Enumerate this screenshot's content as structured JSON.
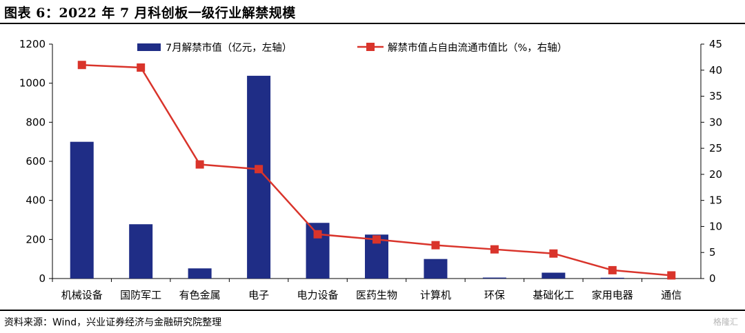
{
  "figure": {
    "title": "图表 6：2022 年 7 月科创板一级行业解禁规模",
    "source": "资料来源：Wind，兴业证券经济与金融研究院整理",
    "watermark": "格隆汇"
  },
  "chart_data": {
    "type": "bar",
    "categories": [
      "机械设备",
      "国防军工",
      "有色金属",
      "电子",
      "电力设备",
      "医药生物",
      "计算机",
      "环保",
      "基础化工",
      "家用电器",
      "通信"
    ],
    "series": [
      {
        "name": "7月解禁市值（亿元，左轴）",
        "type": "bar",
        "axis": "left",
        "color": "#1f2d86",
        "values": [
          700,
          278,
          52,
          1038,
          285,
          225,
          100,
          5,
          30,
          4,
          0
        ]
      },
      {
        "name": "解禁市值占自由流通市值比（%，右轴）",
        "type": "line",
        "axis": "right",
        "color": "#d9342b",
        "values": [
          41.0,
          40.5,
          21.9,
          21.0,
          8.5,
          7.5,
          6.4,
          5.6,
          4.8,
          1.6,
          0.6
        ]
      }
    ],
    "ylim_left": [
      0,
      1200
    ],
    "ylim_right": [
      0,
      45
    ],
    "yticks_left": [
      "0",
      "200",
      "400",
      "600",
      "800",
      "1000",
      "1200"
    ],
    "yticks_right": [
      "0",
      "5",
      "10",
      "15",
      "20",
      "25",
      "30",
      "35",
      "40",
      "45"
    ],
    "legend_position": "top",
    "grid": false
  }
}
